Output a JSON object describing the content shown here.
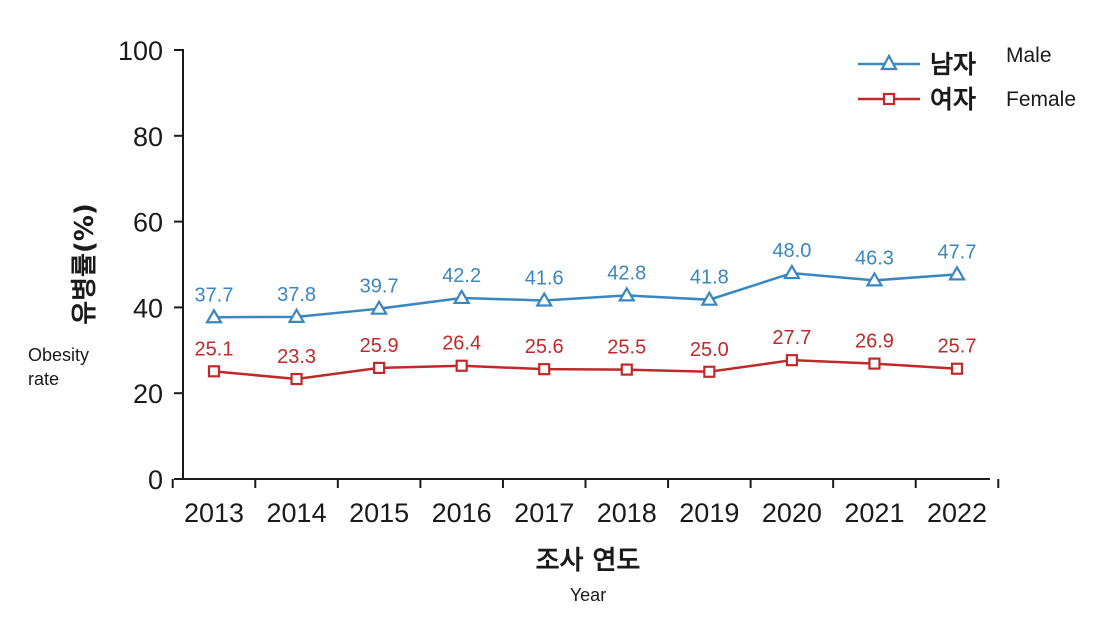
{
  "chart_data": {
    "type": "line",
    "x": [
      "2013",
      "2014",
      "2015",
      "2016",
      "2017",
      "2018",
      "2019",
      "2020",
      "2021",
      "2022"
    ],
    "series": [
      {
        "name": "남자",
        "name_en": "Male",
        "color": "#3a87c0",
        "marker": "triangle",
        "values": [
          37.7,
          37.8,
          39.7,
          42.2,
          41.6,
          42.8,
          41.8,
          48.0,
          46.3,
          47.7
        ],
        "labels": [
          "37.7",
          "37.8",
          "39.7",
          "42.2",
          "41.6",
          "42.8",
          "41.8",
          "48.0",
          "46.3",
          "47.7"
        ]
      },
      {
        "name": "여자",
        "name_en": "Female",
        "color": "#c0282a",
        "marker": "square",
        "values": [
          25.1,
          23.3,
          25.9,
          26.4,
          25.6,
          25.5,
          25.0,
          27.7,
          26.9,
          25.7
        ],
        "labels": [
          "25.1",
          "23.3",
          "25.9",
          "26.4",
          "25.6",
          "25.5",
          "25.0",
          "27.7",
          "26.9",
          "25.7"
        ]
      }
    ],
    "ylabel": "유병률(%)",
    "ylabel_en_line1": "Obesity",
    "ylabel_en_line2": "rate",
    "xlabel": "조사 연도",
    "xlabel_en": "Year",
    "ylim": [
      0,
      100
    ],
    "yticks": [
      "0",
      "20",
      "40",
      "60",
      "80",
      "100"
    ],
    "grid": false,
    "legend_position": "top-right"
  }
}
